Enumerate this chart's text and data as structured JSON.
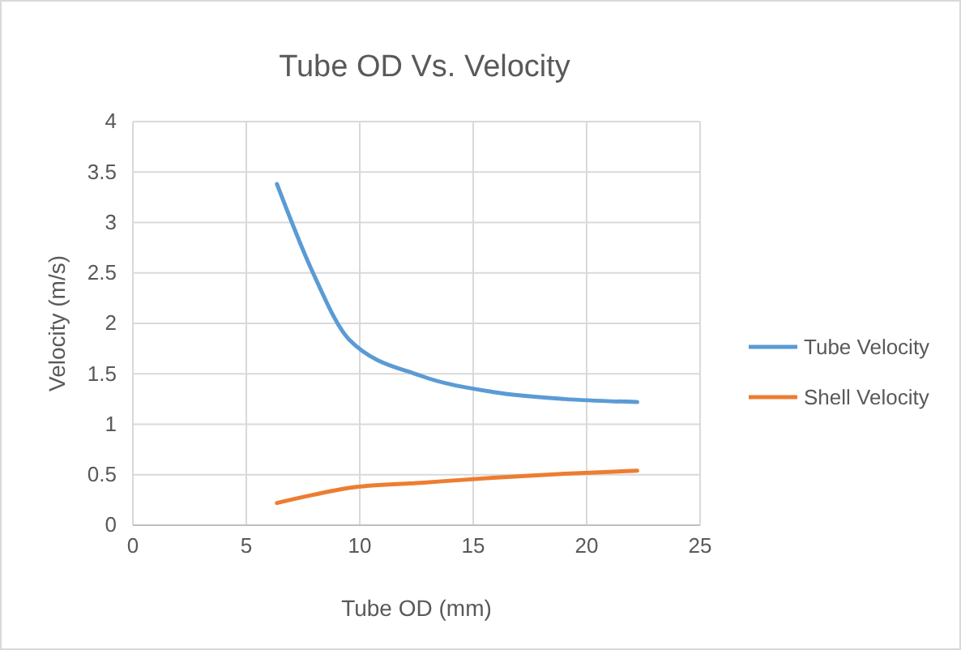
{
  "chart_data": {
    "type": "line",
    "title": "Tube OD Vs. Velocity",
    "xlabel": "Tube OD (mm)",
    "ylabel": "Velocity (m/s)",
    "x": [
      6.35,
      7.94,
      9.53,
      12.7,
      15.88,
      19.05,
      22.23
    ],
    "series": [
      {
        "name": "Tube Velocity",
        "color": "#5b9bd5",
        "values": [
          3.38,
          2.5,
          1.84,
          1.48,
          1.32,
          1.25,
          1.22
        ]
      },
      {
        "name": "Shell Velocity",
        "color": "#ed7d31",
        "values": [
          0.22,
          0.3,
          0.37,
          0.42,
          0.47,
          0.51,
          0.54
        ]
      }
    ],
    "xlim": [
      0,
      25
    ],
    "xticks": [
      0,
      5,
      10,
      15,
      20,
      25
    ],
    "ylim": [
      0,
      4
    ],
    "yticks": [
      0,
      0.5,
      1,
      1.5,
      2,
      2.5,
      3,
      3.5,
      4
    ],
    "grid": true,
    "legend": "right",
    "marker": "none",
    "line_style": "solid"
  }
}
